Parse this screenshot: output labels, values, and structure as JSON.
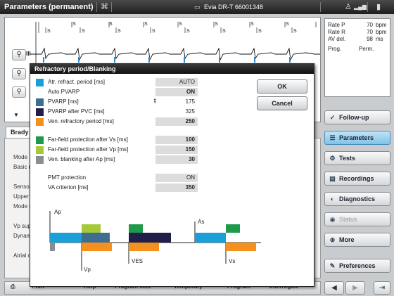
{
  "window": {
    "title": "Parameters (permanent)",
    "device": "Evia DR-T 66001348"
  },
  "info": {
    "rows": [
      {
        "label": "Rate P",
        "value": "70",
        "unit": "bpm"
      },
      {
        "label": "Rate R",
        "value": "70",
        "unit": "bpm"
      },
      {
        "label": "AV del.",
        "value": "98",
        "unit": "ms"
      }
    ],
    "prog_label": "Prog.",
    "prog_value": "Perm."
  },
  "ecg": {
    "channel_label": "III",
    "marker_label": "S"
  },
  "nav": [
    {
      "label": "Follow-up",
      "icon": "follow-up-icon",
      "glyph": "✓"
    },
    {
      "label": "Parameters",
      "icon": "parameters-icon",
      "glyph": "☰"
    },
    {
      "label": "Tests",
      "icon": "tests-icon",
      "glyph": "⚙"
    },
    {
      "label": "Recordings",
      "icon": "recordings-icon",
      "glyph": "▤"
    },
    {
      "label": "Diagnostics",
      "icon": "diagnostics-icon",
      "glyph": "◐"
    },
    {
      "label": "Status",
      "icon": "status-icon",
      "glyph": "◉"
    },
    {
      "label": "More",
      "icon": "more-icon",
      "glyph": "⊕"
    },
    {
      "label": "Preferences",
      "icon": "preferences-icon",
      "glyph": "✎"
    }
  ],
  "background": {
    "tab": "Brady",
    "labels": [
      "Mode",
      "Basic ra",
      "Sensor",
      "Upper r",
      "Mode sw",
      "Vp supp",
      "Dynam",
      "Atrial o"
    ]
  },
  "bottom": {
    "buttons": [
      "Print",
      "Help",
      "Program sets",
      "Temporary",
      "Program",
      "Interrogate"
    ]
  },
  "dialog": {
    "title": "Refractory period/Blanking",
    "ok_label": "OK",
    "cancel_label": "Cancel",
    "params": [
      {
        "label": "Atr. refract. period [ms]",
        "value": "AUTO",
        "color": "#1a9fd8"
      },
      {
        "label": "Auto PVARP",
        "value": "ON",
        "color": ""
      },
      {
        "label": "PVARP [ms]",
        "value": "175",
        "color": "#3d6e8f"
      },
      {
        "label": "PVARP after PVC [ms]",
        "value": "325",
        "color": "#1f1f4a"
      },
      {
        "label": "Ven. refractory period [ms]",
        "value": "250",
        "color": "#f3901e"
      },
      {
        "label": "Far-field protection after Vs [ms]",
        "value": "100",
        "color": "#1e9a4a"
      },
      {
        "label": "Far-field protection after Vp [ms]",
        "value": "150",
        "color": "#a6c93a"
      },
      {
        "label": "Ven. blanking after Ap [ms]",
        "value": "30",
        "color": "#8a8d90"
      },
      {
        "label": "PMT protection",
        "value": "ON",
        "color": ""
      },
      {
        "label": "VA criterion [ms]",
        "value": "350",
        "color": ""
      }
    ],
    "diagram": {
      "labels": {
        "ap": "Ap",
        "vp": "Vp",
        "ves": "VES",
        "as": "As",
        "vs": "Vs"
      }
    }
  }
}
